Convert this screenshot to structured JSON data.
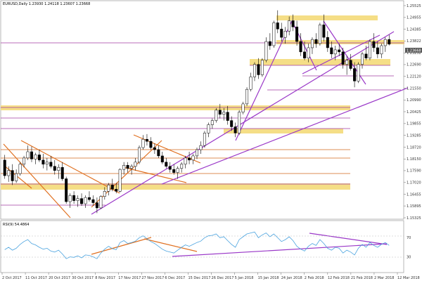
{
  "chart_data": {
    "type": "candlestick",
    "symbol_header": "EURUSD,Daily  1.23930 1.24118 1.23607 1.23668",
    "current_price_label": "1.23668",
    "rsi_header": "RSI(9) 54.4864",
    "y_ticks": [
      "1.25525",
      "1.24955",
      "1.24385",
      "1.23822",
      "1.23252",
      "1.22690",
      "1.22120",
      "1.21550",
      "1.20990",
      "1.20425",
      "1.19855",
      "1.19285",
      "1.18720",
      "1.18150",
      "1.17590",
      "1.17020",
      "1.16455",
      "1.15895",
      "1.15325"
    ],
    "rsi_ticks": [
      "70",
      "30"
    ],
    "x_ticks": [
      "2 Oct 2017",
      "11 Oct 2017",
      "20 Oct 2017",
      "30 Oct 2017",
      "8 Nov 2017",
      "17 Nov 2017",
      "27 Nov 2017",
      "6 Dec 2017",
      "15 Dec 2017",
      "26 Dec 2017",
      "5 Jan 2018",
      "15 Jan 2018",
      "24 Jan 2018",
      "2 Feb 2018",
      "12 Feb 2018",
      "21 Feb 2018",
      "2 Mar 2018",
      "12 Mar 2018"
    ],
    "price_range": [
      1.15325,
      1.25525
    ],
    "rsi_range": [
      0,
      100
    ],
    "candles": [
      [
        1.181,
        1.1835,
        1.172,
        1.1735
      ],
      [
        1.1735,
        1.178,
        1.1705,
        1.176
      ],
      [
        1.176,
        1.179,
        1.169,
        1.171
      ],
      [
        1.171,
        1.1765,
        1.17,
        1.1745
      ],
      [
        1.1745,
        1.18,
        1.1735,
        1.179
      ],
      [
        1.179,
        1.183,
        1.1775,
        1.182
      ],
      [
        1.182,
        1.188,
        1.181,
        1.185
      ],
      [
        1.185,
        1.1875,
        1.18,
        1.1815
      ],
      [
        1.1815,
        1.1845,
        1.179,
        1.1835
      ],
      [
        1.1835,
        1.186,
        1.18,
        1.181
      ],
      [
        1.181,
        1.184,
        1.177,
        1.179
      ],
      [
        1.179,
        1.182,
        1.176,
        1.18
      ],
      [
        1.18,
        1.183,
        1.177,
        1.178
      ],
      [
        1.178,
        1.181,
        1.174,
        1.176
      ],
      [
        1.176,
        1.179,
        1.172,
        1.1775
      ],
      [
        1.1775,
        1.18,
        1.171,
        1.172
      ],
      [
        1.172,
        1.173,
        1.16,
        1.161
      ],
      [
        1.161,
        1.165,
        1.158,
        1.164
      ],
      [
        1.164,
        1.166,
        1.16,
        1.1615
      ],
      [
        1.1615,
        1.164,
        1.1585,
        1.1625
      ],
      [
        1.1625,
        1.165,
        1.159,
        1.16
      ],
      [
        1.16,
        1.164,
        1.158,
        1.163
      ],
      [
        1.163,
        1.166,
        1.161,
        1.162
      ],
      [
        1.162,
        1.164,
        1.159,
        1.1605
      ],
      [
        1.1605,
        1.163,
        1.1555,
        1.158
      ],
      [
        1.158,
        1.164,
        1.1575,
        1.1635
      ],
      [
        1.1635,
        1.168,
        1.162,
        1.166
      ],
      [
        1.166,
        1.17,
        1.164,
        1.169
      ],
      [
        1.169,
        1.172,
        1.166,
        1.167
      ],
      [
        1.167,
        1.17,
        1.165,
        1.166
      ],
      [
        1.166,
        1.177,
        1.1655,
        1.1765
      ],
      [
        1.1765,
        1.18,
        1.174,
        1.1785
      ],
      [
        1.1785,
        1.18,
        1.175,
        1.177
      ],
      [
        1.177,
        1.179,
        1.174,
        1.178
      ],
      [
        1.178,
        1.182,
        1.176,
        1.18
      ],
      [
        1.18,
        1.188,
        1.179,
        1.187
      ],
      [
        1.187,
        1.193,
        1.186,
        1.191
      ],
      [
        1.191,
        1.1935,
        1.188,
        1.19
      ],
      [
        1.19,
        1.192,
        1.186,
        1.187
      ],
      [
        1.187,
        1.189,
        1.184,
        1.186
      ],
      [
        1.186,
        1.188,
        1.182,
        1.183
      ],
      [
        1.183,
        1.185,
        1.179,
        1.18
      ],
      [
        1.18,
        1.182,
        1.177,
        1.178
      ],
      [
        1.178,
        1.18,
        1.175,
        1.1765
      ],
      [
        1.1765,
        1.179,
        1.174,
        1.175
      ],
      [
        1.175,
        1.178,
        1.172,
        1.177
      ],
      [
        1.177,
        1.18,
        1.175,
        1.179
      ],
      [
        1.179,
        1.183,
        1.177,
        1.182
      ],
      [
        1.182,
        1.185,
        1.179,
        1.181
      ],
      [
        1.181,
        1.184,
        1.179,
        1.183
      ],
      [
        1.183,
        1.187,
        1.1815,
        1.186
      ],
      [
        1.186,
        1.19,
        1.184,
        1.188
      ],
      [
        1.188,
        1.195,
        1.187,
        1.194
      ],
      [
        1.194,
        1.199,
        1.192,
        1.198
      ],
      [
        1.198,
        1.201,
        1.196,
        1.2
      ],
      [
        1.2,
        1.206,
        1.199,
        1.205
      ],
      [
        1.205,
        1.208,
        1.201,
        1.203
      ],
      [
        1.203,
        1.206,
        1.2,
        1.204
      ],
      [
        1.204,
        1.207,
        1.198,
        1.2
      ],
      [
        1.2,
        1.202,
        1.195,
        1.197
      ],
      [
        1.197,
        1.199,
        1.192,
        1.194
      ],
      [
        1.194,
        1.205,
        1.193,
        1.204
      ],
      [
        1.204,
        1.209,
        1.203,
        1.208
      ],
      [
        1.208,
        1.216,
        1.207,
        1.215
      ],
      [
        1.215,
        1.223,
        1.214,
        1.221
      ],
      [
        1.221,
        1.228,
        1.219,
        1.227
      ],
      [
        1.227,
        1.23,
        1.22,
        1.222
      ],
      [
        1.222,
        1.23,
        1.221,
        1.229
      ],
      [
        1.229,
        1.24,
        1.228,
        1.238
      ],
      [
        1.238,
        1.242,
        1.234,
        1.236
      ],
      [
        1.236,
        1.248,
        1.235,
        1.247
      ],
      [
        1.247,
        1.253,
        1.242,
        1.244
      ],
      [
        1.244,
        1.247,
        1.238,
        1.24
      ],
      [
        1.24,
        1.245,
        1.237,
        1.243
      ],
      [
        1.243,
        1.25,
        1.241,
        1.248
      ],
      [
        1.248,
        1.251,
        1.243,
        1.245
      ],
      [
        1.245,
        1.248,
        1.236,
        1.238
      ],
      [
        1.238,
        1.242,
        1.231,
        1.233
      ],
      [
        1.233,
        1.238,
        1.229,
        1.23
      ],
      [
        1.23,
        1.237,
        1.228,
        1.235
      ],
      [
        1.235,
        1.24,
        1.232,
        1.239
      ],
      [
        1.239,
        1.242,
        1.235,
        1.237
      ],
      [
        1.237,
        1.247,
        1.236,
        1.246
      ],
      [
        1.246,
        1.251,
        1.238,
        1.24
      ],
      [
        1.24,
        1.243,
        1.233,
        1.235
      ],
      [
        1.235,
        1.238,
        1.23,
        1.232
      ],
      [
        1.232,
        1.236,
        1.229,
        1.234
      ],
      [
        1.234,
        1.237,
        1.231,
        1.233
      ],
      [
        1.233,
        1.235,
        1.225,
        1.227
      ],
      [
        1.227,
        1.231,
        1.222,
        1.229
      ],
      [
        1.229,
        1.232,
        1.224,
        1.225
      ],
      [
        1.225,
        1.228,
        1.216,
        1.219
      ],
      [
        1.219,
        1.228,
        1.218,
        1.227
      ],
      [
        1.227,
        1.233,
        1.225,
        1.232
      ],
      [
        1.232,
        1.236,
        1.229,
        1.23
      ],
      [
        1.23,
        1.239,
        1.229,
        1.238
      ],
      [
        1.238,
        1.242,
        1.233,
        1.235
      ],
      [
        1.235,
        1.238,
        1.23,
        1.232
      ],
      [
        1.232,
        1.237,
        1.23,
        1.236
      ],
      [
        1.236,
        1.24,
        1.233,
        1.239
      ],
      [
        1.239,
        1.2412,
        1.2361,
        1.2367
      ]
    ],
    "rsi_values": [
      45,
      50,
      44,
      48,
      56,
      62,
      66,
      58,
      55,
      50,
      46,
      48,
      42,
      40,
      44,
      36,
      26,
      30,
      29,
      32,
      28,
      34,
      33,
      30,
      26,
      38,
      46,
      52,
      47,
      45,
      60,
      64,
      58,
      60,
      63,
      70,
      74,
      68,
      62,
      58,
      52,
      46,
      42,
      40,
      38,
      44,
      50,
      55,
      52,
      56,
      60,
      63,
      70,
      74,
      75,
      78,
      70,
      72,
      64,
      56,
      50,
      66,
      72,
      78,
      80,
      82,
      70,
      76,
      80,
      72,
      78,
      70,
      62,
      66,
      72,
      64,
      52,
      46,
      42,
      52,
      58,
      54,
      66,
      58,
      48,
      44,
      50,
      48,
      38,
      44,
      40,
      34,
      48,
      56,
      50,
      60,
      54,
      50,
      56,
      60,
      54
    ]
  }
}
